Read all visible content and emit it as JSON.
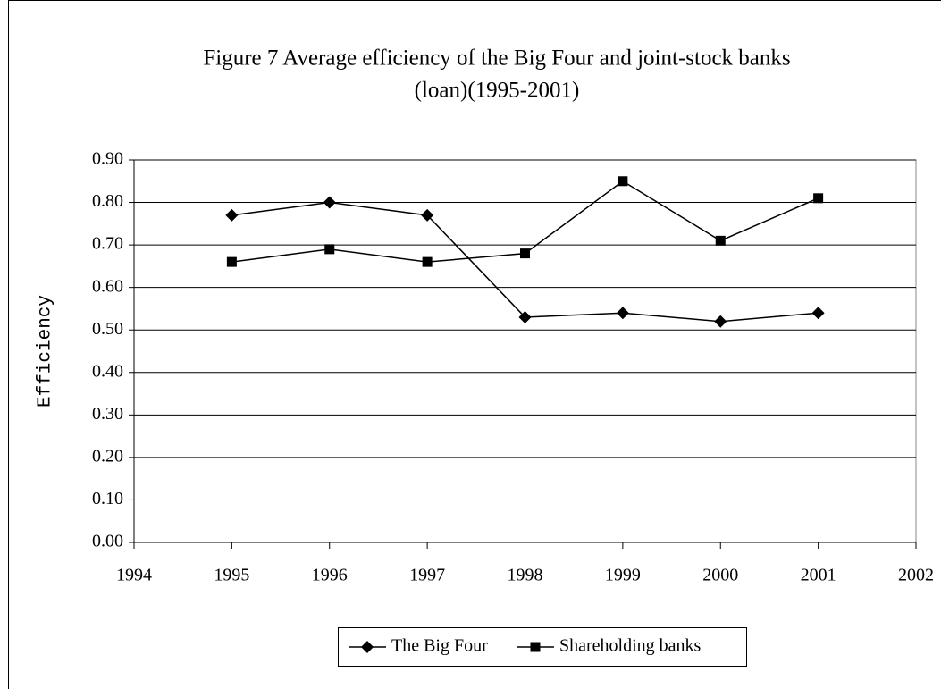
{
  "chart_data": {
    "type": "line",
    "title": [
      "Figure 7 Average efficiency of the Big Four and joint-stock banks",
      "(loan)(1995-2001)"
    ],
    "y_label": "Efficiency",
    "x": [
      1995,
      1996,
      1997,
      1998,
      1999,
      2000,
      2001
    ],
    "series": [
      {
        "name": "The Big Four",
        "color": "#000000",
        "marker": "diamond",
        "values": [
          0.77,
          0.8,
          0.77,
          0.53,
          0.54,
          0.52,
          0.54
        ]
      },
      {
        "name": "Shareholding banks",
        "color": "#000000",
        "marker": "square",
        "values": [
          0.66,
          0.69,
          0.66,
          0.68,
          0.85,
          0.71,
          0.81
        ]
      }
    ],
    "xlim": [
      1994,
      2002
    ],
    "xticks": [
      1994,
      1995,
      1996,
      1997,
      1998,
      1999,
      2000,
      2001,
      2002
    ],
    "ylim": [
      0,
      0.9
    ],
    "yticks": [
      {
        "value": 0,
        "label": "0.00"
      },
      {
        "value": 0.1,
        "label": "0.10"
      },
      {
        "value": 0.2,
        "label": "0.20"
      },
      {
        "value": 0.3,
        "label": "0.30"
      },
      {
        "value": 0.4,
        "label": "0.40"
      },
      {
        "value": 0.5,
        "label": "0.50"
      },
      {
        "value": 0.6,
        "label": "0.60"
      },
      {
        "value": 0.7,
        "label": "0.70"
      },
      {
        "value": 0.8,
        "label": "0.80"
      },
      {
        "value": 0.9,
        "label": "0.90"
      }
    ],
    "grid": true,
    "legend": "bottom"
  }
}
